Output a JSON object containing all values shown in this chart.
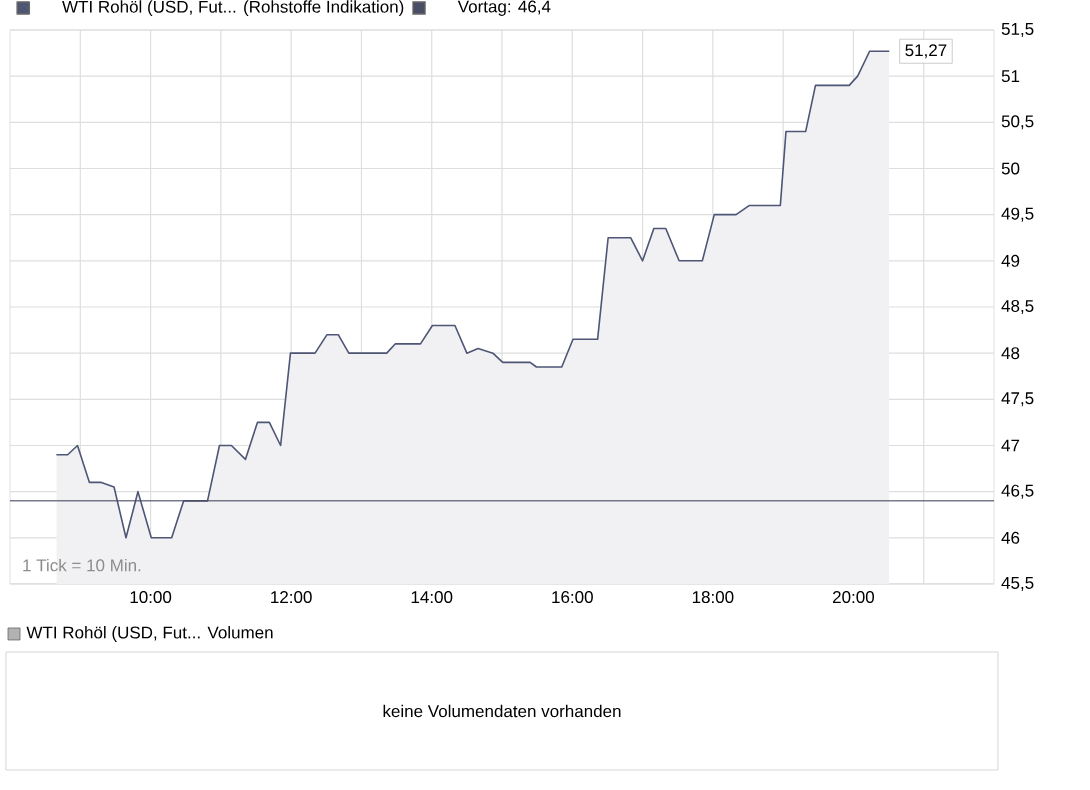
{
  "chart_data": [
    {
      "type": "area",
      "legend": "top left",
      "grid": true,
      "xlim": [
        8,
        22
      ],
      "ylim": [
        45.5,
        51.5
      ],
      "xticks": [
        {
          "value": 9,
          "label": null
        },
        {
          "value": 10,
          "label": "10:00"
        },
        {
          "value": 11,
          "label": null
        },
        {
          "value": 12,
          "label": "12:00"
        },
        {
          "value": 13,
          "label": null
        },
        {
          "value": 14,
          "label": "14:00"
        },
        {
          "value": 15,
          "label": null
        },
        {
          "value": 16,
          "label": "16:00"
        },
        {
          "value": 17,
          "label": null
        },
        {
          "value": 18,
          "label": "18:00"
        },
        {
          "value": 19,
          "label": null
        },
        {
          "value": 20,
          "label": "20:00"
        },
        {
          "value": 21,
          "label": null
        }
      ],
      "yticks": [
        {
          "value": 45.5,
          "label": "45,5"
        },
        {
          "value": 46,
          "label": "46"
        },
        {
          "value": 46.5,
          "label": "46,5"
        },
        {
          "value": 47,
          "label": "47"
        },
        {
          "value": 47.5,
          "label": "47,5"
        },
        {
          "value": 48,
          "label": "48"
        },
        {
          "value": 48.5,
          "label": "48,5"
        },
        {
          "value": 49,
          "label": "49"
        },
        {
          "value": 49.5,
          "label": "49,5"
        },
        {
          "value": 50,
          "label": "50"
        },
        {
          "value": 50.5,
          "label": "50,5"
        },
        {
          "value": 51,
          "label": "51"
        },
        {
          "value": 51.5,
          "label": "51,5"
        }
      ],
      "series": [
        {
          "name": "WTI Rohöl (USD, Fut... (Rohstoffe Indikation)",
          "color": "#4e5575",
          "x": [
            8.66,
            8.82,
            8.96,
            9.13,
            9.3,
            9.48,
            9.65,
            9.82,
            10.01,
            10.3,
            10.47,
            10.81,
            10.98,
            11.15,
            11.35,
            11.52,
            11.69,
            11.85,
            11.99,
            12.34,
            12.51,
            12.67,
            12.82,
            13.36,
            13.48,
            13.84,
            14.01,
            14.33,
            14.5,
            14.66,
            14.87,
            15.01,
            15.4,
            15.49,
            15.85,
            16.01,
            16.36,
            16.51,
            16.83,
            17.0,
            17.16,
            17.33,
            17.52,
            17.85,
            18.02,
            18.33,
            18.52,
            18.85,
            18.96,
            19.04,
            19.32,
            19.46,
            19.94,
            20.06,
            20.23,
            20.51
          ],
          "values": [
            46.9,
            46.9,
            47.0,
            46.6,
            46.6,
            46.55,
            46.0,
            46.5,
            46.0,
            46.0,
            46.4,
            46.4,
            47.0,
            47.0,
            46.85,
            47.25,
            47.25,
            47.0,
            48.0,
            48.0,
            48.2,
            48.2,
            48.0,
            48.0,
            48.1,
            48.1,
            48.3,
            48.3,
            48.0,
            48.05,
            48.0,
            47.9,
            47.9,
            47.85,
            47.85,
            48.15,
            48.15,
            49.25,
            49.25,
            49.0,
            49.35,
            49.35,
            49.0,
            49.0,
            49.5,
            49.5,
            49.6,
            49.6,
            49.6,
            50.4,
            50.4,
            50.9,
            50.9,
            51.0,
            51.27,
            51.27
          ]
        }
      ],
      "ref_lines": [
        {
          "axis": "y",
          "value": 46.4,
          "label": "Vortag: 46,4",
          "color": "#4a4e64"
        }
      ],
      "annotations": [
        "1 Tick = 10 Min.",
        {
          "text": "51,27",
          "x": 20.51,
          "y": 51.27
        }
      ]
    },
    {
      "type": "other",
      "title": "WTI Rohöl (USD, Fut... Volumen",
      "annotations": [
        "keine Volumendaten vorhanden"
      ]
    }
  ]
}
